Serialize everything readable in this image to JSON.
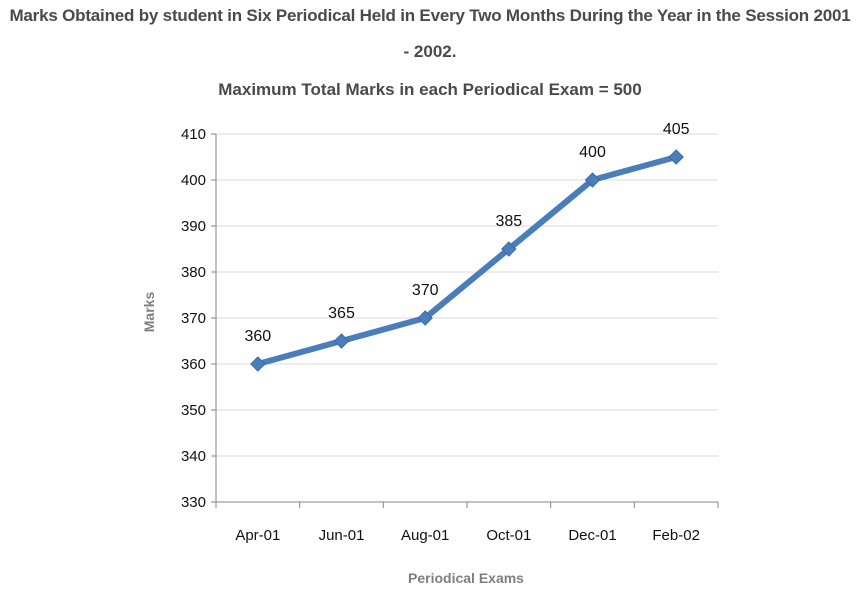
{
  "title_line1": "Marks Obtained by student in Six Periodical Held in Every Two Months During the Year in the Session 2001",
  "title_line2": "- 2002.",
  "subtitle": "Maximum Total Marks in each Periodical Exam = 500",
  "chart_data": {
    "type": "line",
    "title": "Marks Obtained by student in Six Periodical Held in Every Two Months During the Year in the Session 2001 - 2002.",
    "subtitle": "Maximum Total Marks in each Periodical Exam = 500",
    "xlabel": "Periodical Exams",
    "ylabel": "Marks",
    "categories": [
      "Apr-01",
      "Jun-01",
      "Aug-01",
      "Oct-01",
      "Dec-01",
      "Feb-02"
    ],
    "series": [
      {
        "values": [
          360,
          365,
          370,
          385,
          400,
          405
        ],
        "color": "#4a7ebb",
        "marker": "diamond",
        "data_labels": true
      }
    ],
    "ylim": [
      330,
      410
    ],
    "yticks": [
      330,
      340,
      350,
      360,
      370,
      380,
      390,
      400,
      410
    ],
    "grid": "horizontal",
    "legend": "none"
  }
}
